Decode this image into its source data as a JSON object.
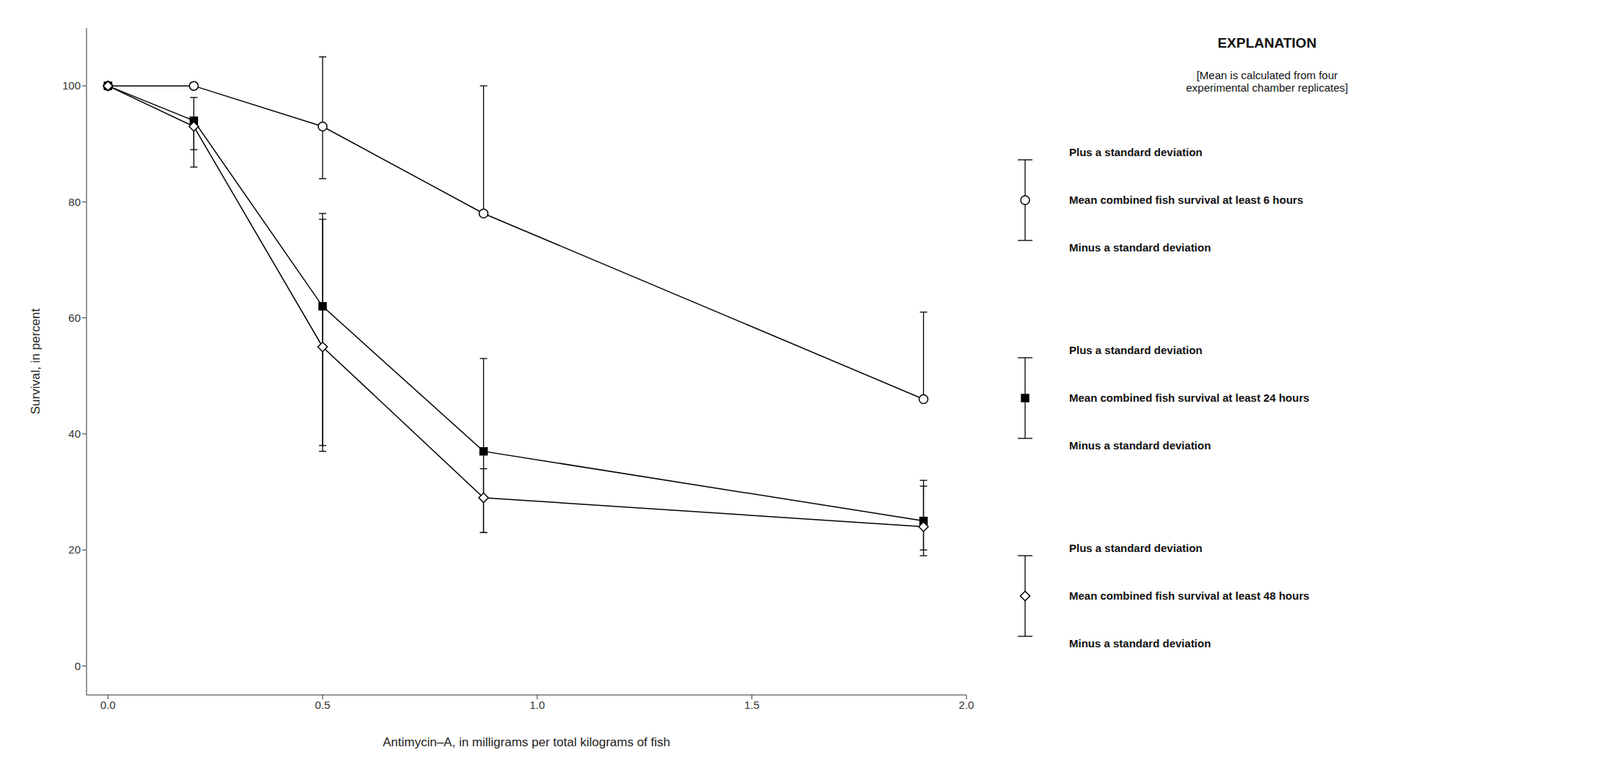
{
  "chart_data": {
    "type": "line",
    "x": [
      0,
      0.2,
      0.5,
      0.875,
      1.9
    ],
    "xlabel": "Antimycin–A, in milligrams per total kilograms of fish",
    "ylabel": "Survival, in percent",
    "xlim": [
      -0.05,
      2.0
    ],
    "ylim": [
      -5,
      110
    ],
    "xticks": [
      {
        "value": 0,
        "label": "0.0"
      },
      0.5,
      {
        "value": 1.0,
        "label": "1.0"
      },
      1.5,
      {
        "value": 2.0,
        "label": "2.0"
      }
    ],
    "yticks": [
      0,
      20,
      40,
      60,
      80,
      100
    ],
    "grid": false,
    "legend": "right",
    "annotations": [
      "EXPLANATION",
      "[Mean is calculated from four\nexperimental chamber replicates]"
    ],
    "series": [
      {
        "name": "Mean combined fish survival at least 6 hours",
        "color": "black",
        "marker": "circle-open",
        "values": [
          100,
          100,
          93,
          78,
          46
        ],
        "yerr_plus": [
          0,
          0,
          12,
          22,
          15
        ],
        "yerr_minus": [
          0,
          0,
          9,
          0,
          0
        ],
        "error_labels": [
          "Plus a standard deviation",
          "Minus a standard deviation"
        ]
      },
      {
        "name": "Mean combined fish survival at least 24 hours",
        "color": "black",
        "marker": "square",
        "values": [
          100,
          94,
          62,
          37,
          25
        ],
        "yerr_plus": [
          0,
          4,
          16,
          16,
          7
        ],
        "yerr_minus": [
          0,
          5,
          24,
          14,
          5
        ],
        "error_labels": [
          "Plus a standard deviation",
          "Minus a standard deviation"
        ]
      },
      {
        "name": "Mean combined fish survival at least 48 hours",
        "color": "black",
        "marker": "diamond-open",
        "values": [
          100,
          93,
          55,
          29,
          24
        ],
        "yerr_plus": [
          0,
          0,
          22,
          5,
          7
        ],
        "yerr_minus": [
          0,
          7,
          18,
          6,
          5
        ],
        "error_labels": [
          "Plus a standard deviation",
          "Minus a standard deviation"
        ]
      }
    ]
  }
}
